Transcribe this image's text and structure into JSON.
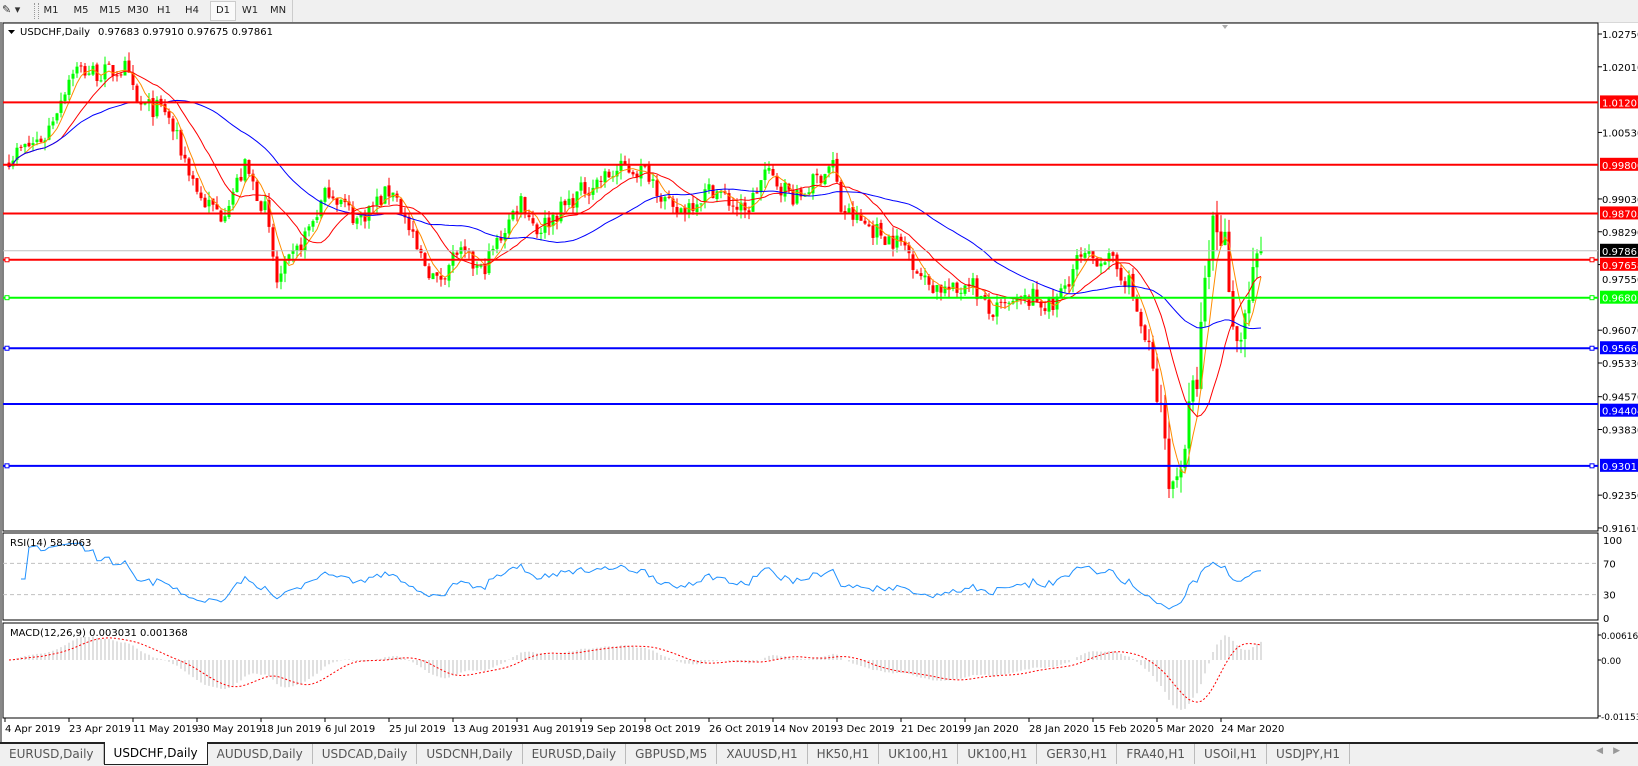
{
  "toolbar": {
    "timeframes": [
      "M1",
      "M5",
      "M15",
      "M30",
      "H1",
      "H4",
      "D1",
      "W1",
      "MN"
    ],
    "selected": "D1"
  },
  "chart": {
    "symbol_title": "USDCHF,Daily",
    "ohlc": "0.97683 0.97910 0.97675 0.97861",
    "price_axis_labels": [
      "1.02750",
      "1.02010",
      "1.00530",
      "0.99030",
      "0.98290",
      "0.97550",
      "0.96070",
      "0.95330",
      "0.94570",
      "0.93830",
      "0.92350",
      "0.91610"
    ],
    "current_price": "0.97861",
    "horizontal_lines": [
      {
        "price": "1.01207",
        "color": "#ff0000"
      },
      {
        "price": "0.99800",
        "color": "#ff0000"
      },
      {
        "price": "0.98703",
        "color": "#ff0000"
      },
      {
        "price": "0.97658",
        "color": "#ff0000"
      },
      {
        "price": "0.96803",
        "color": "#00ff00"
      },
      {
        "price": "0.95663",
        "color": "#0000ff"
      },
      {
        "price": "0.94404",
        "color": "#0000ff"
      },
      {
        "price": "0.93011",
        "color": "#0000ff"
      }
    ],
    "date_labels": [
      "4 Apr 2019",
      "23 Apr 2019",
      "11 May 2019",
      "30 May 2019",
      "18 Jun 2019",
      "6 Jul 2019",
      "25 Jul 2019",
      "13 Aug 2019",
      "31 Aug 2019",
      "19 Sep 2019",
      "8 Oct 2019",
      "26 Oct 2019",
      "14 Nov 2019",
      "3 Dec 2019",
      "21 Dec 2019",
      "9 Jan 2020",
      "28 Jan 2020",
      "15 Feb 2020",
      "5 Mar 2020",
      "24 Mar 2020"
    ],
    "colors": {
      "bull": "#00ff00",
      "bear": "#ff0000",
      "ma_fast": "#ff8c00",
      "ma_mid": "#ff0000",
      "ma_slow": "#0000ff",
      "rsi": "#1e90ff",
      "macd_hist": "#c0c0c0",
      "macd_signal": "#ff0000"
    }
  },
  "rsi": {
    "label": "RSI(14) 58.3063",
    "levels": [
      "100",
      "70",
      "30",
      "0"
    ]
  },
  "macd": {
    "label": "MACD(12,26,9) 0.003031 0.001368",
    "levels": [
      "0.006167",
      "0.00",
      "-0.01153"
    ]
  },
  "chart_data": {
    "type": "candlestick",
    "symbol": "USDCHF",
    "timeframe": "Daily",
    "approx_close_path": [
      [
        "2019-04-04",
        0.9997
      ],
      [
        "2019-04-15",
        1.0044
      ],
      [
        "2019-04-23",
        1.0197
      ],
      [
        "2019-05-01",
        1.0186
      ],
      [
        "2019-05-08",
        1.0197
      ],
      [
        "2019-05-11",
        1.0115
      ],
      [
        "2019-05-20",
        1.0103
      ],
      [
        "2019-05-30",
        0.9903
      ],
      [
        "2019-06-05",
        0.9868
      ],
      [
        "2019-06-12",
        0.9974
      ],
      [
        "2019-06-18",
        0.9879
      ],
      [
        "2019-06-21",
        0.9715
      ],
      [
        "2019-06-27",
        0.9785
      ],
      [
        "2019-07-06",
        0.9927
      ],
      [
        "2019-07-15",
        0.9856
      ],
      [
        "2019-07-25",
        0.9927
      ],
      [
        "2019-08-01",
        0.9785
      ],
      [
        "2019-08-07",
        0.9715
      ],
      [
        "2019-08-13",
        0.9785
      ],
      [
        "2019-08-20",
        0.9738
      ],
      [
        "2019-08-31",
        0.9903
      ],
      [
        "2019-09-05",
        0.9832
      ],
      [
        "2019-09-19",
        0.9927
      ],
      [
        "2019-10-01",
        0.9974
      ],
      [
        "2019-10-08",
        0.9962
      ],
      [
        "2019-10-15",
        0.9868
      ],
      [
        "2019-10-26",
        0.9927
      ],
      [
        "2019-11-05",
        0.9868
      ],
      [
        "2019-11-10",
        0.9962
      ],
      [
        "2019-11-20",
        0.9903
      ],
      [
        "2019-11-30",
        0.9985
      ],
      [
        "2019-12-03",
        0.9879
      ],
      [
        "2019-12-15",
        0.982
      ],
      [
        "2019-12-21",
        0.9797
      ],
      [
        "2019-12-27",
        0.9715
      ],
      [
        "2020-01-05",
        0.9691
      ],
      [
        "2020-01-09",
        0.9726
      ],
      [
        "2020-01-15",
        0.9644
      ],
      [
        "2020-01-28",
        0.9679
      ],
      [
        "2020-02-03",
        0.9656
      ],
      [
        "2020-02-10",
        0.9762
      ],
      [
        "2020-02-18",
        0.9773
      ],
      [
        "2020-02-25",
        0.9715
      ],
      [
        "2020-03-01",
        0.955
      ],
      [
        "2020-03-05",
        0.9408
      ],
      [
        "2020-03-09",
        0.9244
      ],
      [
        "2020-03-12",
        0.9361
      ],
      [
        "2020-03-15",
        0.9503
      ],
      [
        "2020-03-18",
        0.9691
      ],
      [
        "2020-03-20",
        0.9856
      ],
      [
        "2020-03-24",
        0.9809
      ],
      [
        "2020-03-27",
        0.9573
      ],
      [
        "2020-04-01",
        0.9715
      ],
      [
        "2020-04-03",
        0.9786
      ]
    ],
    "ylim": [
      0.9161,
      1.0275
    ],
    "indicators": [
      "MA fast",
      "MA mid",
      "MA slow",
      "RSI(14)",
      "MACD(12,26,9)"
    ]
  },
  "tabs": {
    "items": [
      "EURUSD,Daily",
      "USDCHF,Daily",
      "AUDUSD,Daily",
      "USDCAD,Daily",
      "USDCNH,Daily",
      "EURUSD,Daily",
      "GBPUSD,M5",
      "XAUUSD,H1",
      "HK50,H1",
      "UK100,H1",
      "UK100,H1",
      "GER30,H1",
      "FRA40,H1",
      "USOil,H1",
      "USDJPY,H1"
    ],
    "active": 1
  }
}
